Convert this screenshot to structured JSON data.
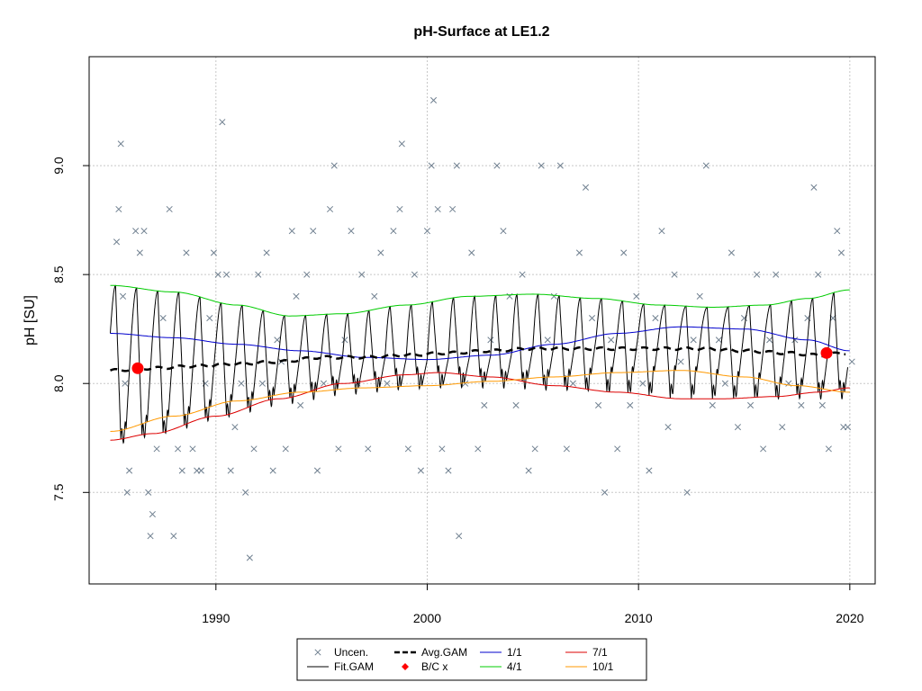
{
  "chart_data": {
    "type": "scatter",
    "title": "pH-Surface at LE1.2",
    "xlabel": "",
    "ylabel": "pH [SU]",
    "xlim": [
      1984.0,
      2021.2
    ],
    "ylim": [
      7.08,
      9.5
    ],
    "x_ticks": [
      1990,
      2000,
      2010,
      2020
    ],
    "x_tick_labels": [
      "1990",
      "2000",
      "2010",
      "2020"
    ],
    "y_ticks": [
      7.5,
      8.0,
      8.5,
      9.0
    ],
    "y_tick_labels": [
      "7.5",
      "8.0",
      "8.5",
      "9.0"
    ],
    "grid": true,
    "legend_position": "bottom",
    "legend": [
      {
        "label": "Uncen.",
        "style": "cross",
        "color": "#708090"
      },
      {
        "label": "Fit.GAM",
        "style": "line",
        "color": "#000000"
      },
      {
        "label": "Avg.GAM",
        "style": "dashed",
        "color": "#000000"
      },
      {
        "label": "B/C x",
        "style": "dot",
        "color": "#ff0000"
      },
      {
        "label": "1/1",
        "style": "line",
        "color": "#0000cd"
      },
      {
        "label": "4/1",
        "style": "line",
        "color": "#00cc00"
      },
      {
        "label": "7/1",
        "style": "line",
        "color": "#dd0000"
      },
      {
        "label": "10/1",
        "style": "line",
        "color": "#ff9900"
      }
    ],
    "colors": {
      "uncen": "#708090",
      "fit": "#000000",
      "avg": "#000000",
      "bc": "#ff0000",
      "jan": "#0000cd",
      "apr": "#00cc00",
      "jul": "#dd0000",
      "oct": "#ff9900",
      "grid": "#c8c8c8"
    },
    "observations_uncen": [
      [
        1985.3,
        8.65
      ],
      [
        1985.5,
        9.1
      ],
      [
        1985.4,
        8.8
      ],
      [
        1985.6,
        8.4
      ],
      [
        1985.7,
        8.0
      ],
      [
        1985.8,
        7.5
      ],
      [
        1985.9,
        7.6
      ],
      [
        1986.2,
        8.7
      ],
      [
        1986.4,
        8.6
      ],
      [
        1986.6,
        8.7
      ],
      [
        1986.8,
        7.5
      ],
      [
        1987.0,
        7.4
      ],
      [
        1986.9,
        7.3
      ],
      [
        1987.2,
        7.7
      ],
      [
        1987.5,
        8.3
      ],
      [
        1987.8,
        8.8
      ],
      [
        1988.0,
        7.3
      ],
      [
        1988.2,
        7.7
      ],
      [
        1988.4,
        7.6
      ],
      [
        1988.6,
        8.6
      ],
      [
        1988.9,
        7.7
      ],
      [
        1989.1,
        7.6
      ],
      [
        1989.3,
        7.6
      ],
      [
        1989.5,
        8.0
      ],
      [
        1989.7,
        8.3
      ],
      [
        1989.9,
        8.6
      ],
      [
        1990.1,
        8.5
      ],
      [
        1990.3,
        9.2
      ],
      [
        1990.5,
        8.5
      ],
      [
        1990.7,
        7.6
      ],
      [
        1990.9,
        7.8
      ],
      [
        1991.2,
        8.0
      ],
      [
        1991.4,
        7.5
      ],
      [
        1991.6,
        7.2
      ],
      [
        1991.8,
        7.7
      ],
      [
        1992.0,
        8.5
      ],
      [
        1992.2,
        8.0
      ],
      [
        1992.4,
        8.6
      ],
      [
        1992.7,
        7.6
      ],
      [
        1992.9,
        8.2
      ],
      [
        1993.1,
        8.1
      ],
      [
        1993.3,
        7.7
      ],
      [
        1993.6,
        8.7
      ],
      [
        1993.8,
        8.4
      ],
      [
        1994.0,
        7.9
      ],
      [
        1994.3,
        8.5
      ],
      [
        1994.6,
        8.7
      ],
      [
        1994.8,
        7.6
      ],
      [
        1995.1,
        8.0
      ],
      [
        1995.4,
        8.8
      ],
      [
        1995.6,
        9.0
      ],
      [
        1995.8,
        7.7
      ],
      [
        1996.1,
        8.2
      ],
      [
        1996.4,
        8.7
      ],
      [
        1996.7,
        8.0
      ],
      [
        1996.9,
        8.5
      ],
      [
        1997.2,
        7.7
      ],
      [
        1997.5,
        8.4
      ],
      [
        1997.8,
        8.6
      ],
      [
        1998.1,
        8.0
      ],
      [
        1998.4,
        8.7
      ],
      [
        1998.7,
        8.8
      ],
      [
        1998.8,
        9.1
      ],
      [
        1999.1,
        7.7
      ],
      [
        1999.4,
        8.5
      ],
      [
        1999.7,
        7.6
      ],
      [
        2000.0,
        8.7
      ],
      [
        2000.2,
        9.0
      ],
      [
        2000.3,
        9.3
      ],
      [
        2000.5,
        8.8
      ],
      [
        2000.7,
        7.7
      ],
      [
        2001.0,
        7.6
      ],
      [
        2001.2,
        8.8
      ],
      [
        2001.4,
        9.0
      ],
      [
        2001.5,
        7.3
      ],
      [
        2001.8,
        8.0
      ],
      [
        2002.1,
        8.6
      ],
      [
        2002.4,
        7.7
      ],
      [
        2002.7,
        7.9
      ],
      [
        2003.0,
        8.2
      ],
      [
        2003.3,
        9.0
      ],
      [
        2003.6,
        8.7
      ],
      [
        2003.9,
        8.4
      ],
      [
        2004.2,
        7.9
      ],
      [
        2004.5,
        8.5
      ],
      [
        2004.8,
        7.6
      ],
      [
        2005.1,
        7.7
      ],
      [
        2005.4,
        9.0
      ],
      [
        2005.7,
        8.2
      ],
      [
        2006.0,
        8.4
      ],
      [
        2006.3,
        9.0
      ],
      [
        2006.6,
        7.7
      ],
      [
        2006.9,
        8.0
      ],
      [
        2007.2,
        8.6
      ],
      [
        2007.5,
        8.9
      ],
      [
        2007.8,
        8.3
      ],
      [
        2008.1,
        7.9
      ],
      [
        2008.4,
        7.5
      ],
      [
        2008.7,
        8.2
      ],
      [
        2009.0,
        7.7
      ],
      [
        2009.3,
        8.6
      ],
      [
        2009.6,
        7.9
      ],
      [
        2009.9,
        8.4
      ],
      [
        2010.2,
        8.0
      ],
      [
        2010.5,
        7.6
      ],
      [
        2010.8,
        8.3
      ],
      [
        2011.1,
        8.7
      ],
      [
        2011.4,
        7.8
      ],
      [
        2011.7,
        8.5
      ],
      [
        2012.0,
        8.1
      ],
      [
        2012.3,
        7.5
      ],
      [
        2012.6,
        8.2
      ],
      [
        2012.9,
        8.4
      ],
      [
        2013.2,
        9.0
      ],
      [
        2013.5,
        7.9
      ],
      [
        2013.8,
        8.2
      ],
      [
        2014.1,
        8.0
      ],
      [
        2014.4,
        8.6
      ],
      [
        2014.7,
        7.8
      ],
      [
        2015.0,
        8.3
      ],
      [
        2015.3,
        7.9
      ],
      [
        2015.6,
        8.5
      ],
      [
        2015.9,
        7.7
      ],
      [
        2016.2,
        8.2
      ],
      [
        2016.5,
        8.5
      ],
      [
        2016.8,
        7.8
      ],
      [
        2017.1,
        8.0
      ],
      [
        2017.4,
        8.2
      ],
      [
        2017.7,
        7.9
      ],
      [
        2018.0,
        8.3
      ],
      [
        2018.3,
        8.9
      ],
      [
        2018.5,
        8.5
      ],
      [
        2018.7,
        7.9
      ],
      [
        2019.0,
        7.7
      ],
      [
        2019.2,
        8.3
      ],
      [
        2019.4,
        8.7
      ],
      [
        2019.6,
        8.6
      ],
      [
        2019.7,
        7.8
      ],
      [
        2019.9,
        7.8
      ],
      [
        2020.1,
        8.1
      ]
    ],
    "avg_gam": [
      [
        1985.0,
        8.06
      ],
      [
        1987.0,
        8.07
      ],
      [
        1989.0,
        8.08
      ],
      [
        1991.0,
        8.09
      ],
      [
        1993.0,
        8.1
      ],
      [
        1995.0,
        8.12
      ],
      [
        1997.0,
        8.12
      ],
      [
        1999.0,
        8.13
      ],
      [
        2001.0,
        8.14
      ],
      [
        2003.0,
        8.15
      ],
      [
        2005.0,
        8.16
      ],
      [
        2007.0,
        8.16
      ],
      [
        2009.0,
        8.16
      ],
      [
        2011.0,
        8.16
      ],
      [
        2013.0,
        8.16
      ],
      [
        2015.0,
        8.15
      ],
      [
        2017.0,
        8.14
      ],
      [
        2018.5,
        8.13
      ],
      [
        2019.8,
        8.14
      ]
    ],
    "jan_1": [
      [
        1985.0,
        8.23
      ],
      [
        1988.0,
        8.21
      ],
      [
        1991.0,
        8.18
      ],
      [
        1994.0,
        8.15
      ],
      [
        1997.0,
        8.12
      ],
      [
        2000.0,
        8.11
      ],
      [
        2003.0,
        8.13
      ],
      [
        2006.0,
        8.18
      ],
      [
        2009.0,
        8.23
      ],
      [
        2012.0,
        8.26
      ],
      [
        2015.0,
        8.25
      ],
      [
        2018.0,
        8.2
      ],
      [
        2020.0,
        8.15
      ]
    ],
    "apr_1": [
      [
        1985.0,
        8.45
      ],
      [
        1988.0,
        8.42
      ],
      [
        1991.0,
        8.36
      ],
      [
        1993.5,
        8.31
      ],
      [
        1996.0,
        8.32
      ],
      [
        1999.0,
        8.36
      ],
      [
        2002.0,
        8.4
      ],
      [
        2005.0,
        8.41
      ],
      [
        2008.0,
        8.39
      ],
      [
        2011.0,
        8.36
      ],
      [
        2013.5,
        8.35
      ],
      [
        2016.0,
        8.36
      ],
      [
        2018.0,
        8.39
      ],
      [
        2020.0,
        8.43
      ]
    ],
    "jul_1": [
      [
        1985.0,
        7.74
      ],
      [
        1987.0,
        7.77
      ],
      [
        1990.0,
        7.85
      ],
      [
        1993.0,
        7.93
      ],
      [
        1996.0,
        8.0
      ],
      [
        1999.0,
        8.04
      ],
      [
        2000.5,
        8.05
      ],
      [
        2003.0,
        8.03
      ],
      [
        2006.0,
        7.99
      ],
      [
        2009.0,
        7.96
      ],
      [
        2012.0,
        7.93
      ],
      [
        2014.0,
        7.93
      ],
      [
        2016.5,
        7.94
      ],
      [
        2018.5,
        7.96
      ],
      [
        2020.0,
        7.98
      ]
    ],
    "oct_1": [
      [
        1985.0,
        7.78
      ],
      [
        1988.0,
        7.85
      ],
      [
        1991.0,
        7.92
      ],
      [
        1994.0,
        7.96
      ],
      [
        1997.0,
        7.98
      ],
      [
        2000.0,
        7.99
      ],
      [
        2003.0,
        8.01
      ],
      [
        2006.0,
        8.03
      ],
      [
        2009.0,
        8.05
      ],
      [
        2012.0,
        8.06
      ],
      [
        2015.0,
        8.03
      ],
      [
        2017.5,
        7.99
      ],
      [
        2020.0,
        7.96
      ]
    ],
    "fit_gam": {
      "x_start": 1985.0,
      "x_end": 2019.9,
      "season_peak": 0.25,
      "season_trough": 0.55,
      "description_note": ""
    },
    "bc_points": [
      [
        1986.3,
        8.07
      ],
      [
        2018.9,
        8.14
      ]
    ]
  }
}
